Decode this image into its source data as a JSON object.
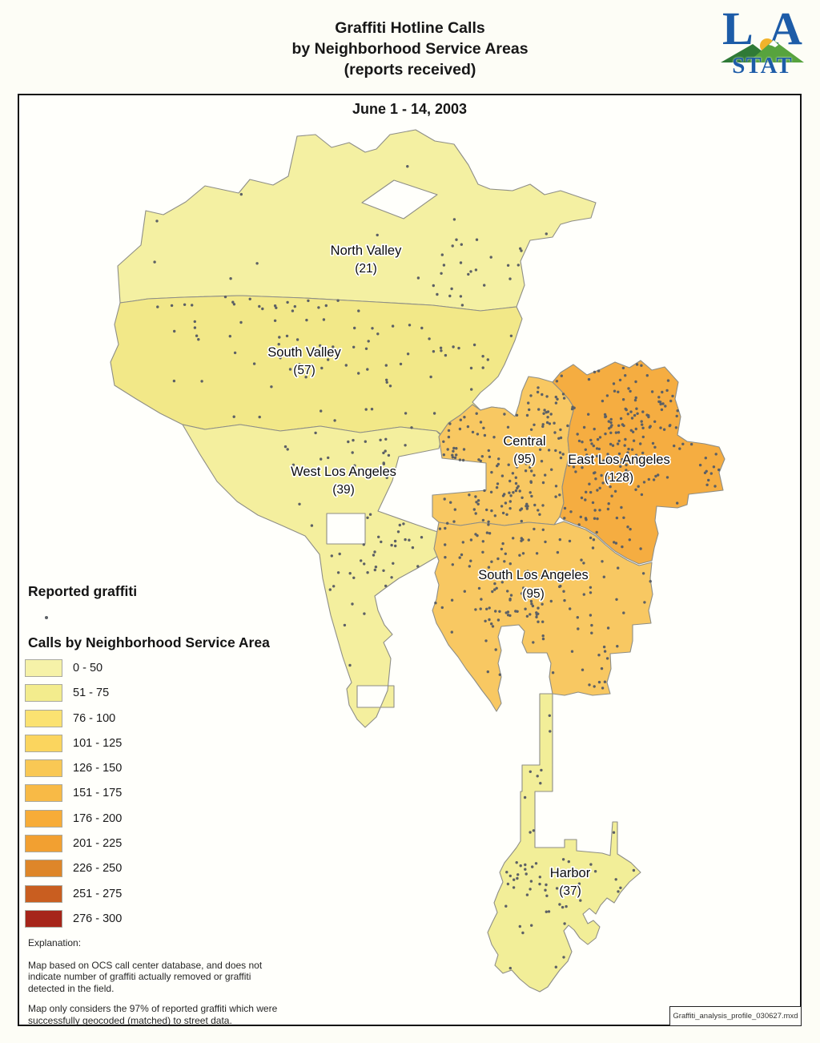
{
  "header": {
    "title_lines": [
      "Graffiti Hotline Calls",
      "by Neighborhood Service Areas",
      "(reports received)"
    ],
    "logo": {
      "la_l": "L",
      "la_a": "A",
      "stat": "STAT",
      "blue": "#1d5ca8",
      "green_dark": "#2f7a36",
      "green_light": "#57a33e",
      "sun": "#f2b32b"
    }
  },
  "map": {
    "date_range": "June 1 - 14, 2003",
    "dot_color": "#5c6065",
    "boundary_color": "#8e8e86",
    "regions": [
      {
        "id": "north-valley",
        "name": "North Valley",
        "calls": 21,
        "count_label": "(21)",
        "fill": "#f4f0a2"
      },
      {
        "id": "south-valley",
        "name": "South Valley",
        "calls": 57,
        "count_label": "(57)",
        "fill": "#f2e888"
      },
      {
        "id": "west-los-angeles",
        "name": "West Los Angeles",
        "calls": 39,
        "count_label": "(39)",
        "fill": "#f4ef9e"
      },
      {
        "id": "central",
        "name": "Central",
        "calls": 95,
        "count_label": "(95)",
        "fill": "#f8c862"
      },
      {
        "id": "east-los-angeles",
        "name": "East Los Angeles",
        "calls": 128,
        "count_label": "(128)",
        "fill": "#f5ad41"
      },
      {
        "id": "south-los-angeles",
        "name": "South Los Angeles",
        "calls": 95,
        "count_label": "(95)",
        "fill": "#f8c862"
      },
      {
        "id": "harbor",
        "name": "Harbor",
        "calls": 37,
        "count_label": "(37)",
        "fill": "#f2ee98"
      }
    ]
  },
  "legend": {
    "reported_graffiti_title": "Reported graffiti",
    "calls_title": "Calls by Neighborhood Service Area",
    "classes": [
      {
        "label": "0 - 50",
        "color": "#f6f2a8"
      },
      {
        "label": "51 - 75",
        "color": "#f3ec8d"
      },
      {
        "label": "76 - 100",
        "color": "#fbe271"
      },
      {
        "label": "101 - 125",
        "color": "#fbd55e"
      },
      {
        "label": "126 - 150",
        "color": "#f9c854"
      },
      {
        "label": "151 - 175",
        "color": "#f8ba46"
      },
      {
        "label": "176 - 200",
        "color": "#f7ac38"
      },
      {
        "label": "201 - 225",
        "color": "#f2a031"
      },
      {
        "label": "226 - 250",
        "color": "#de8629"
      },
      {
        "label": "251 - 275",
        "color": "#c95e20"
      },
      {
        "label": "276 - 300",
        "color": "#a6251a"
      }
    ]
  },
  "explanation": {
    "heading": "Explanation:",
    "paragraphs": [
      "Map based on OCS call center database, and does not indicate number of graffiti actually removed or graffiti detected in the field.",
      "Map only considers the 97% of reported graffiti which were successfully geocoded (matched) to street data."
    ]
  },
  "footer": {
    "filename": "Graffiti_analysis_profile_030627.mxd"
  }
}
